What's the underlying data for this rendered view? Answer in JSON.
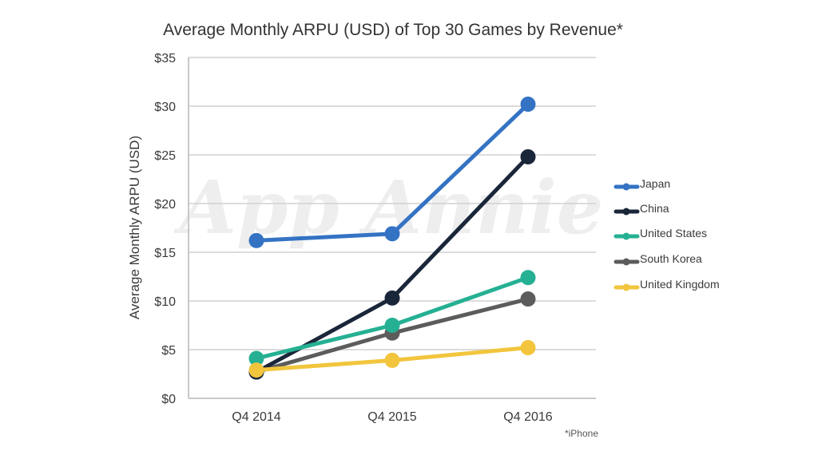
{
  "chart_data": {
    "type": "line",
    "title": "Average Monthly ARPU (USD) of Top 30 Games by Revenue*",
    "xlabel": "",
    "ylabel": "Average Monthly ARPU (USD)",
    "categories": [
      "Q4 2014",
      "Q4 2015",
      "Q4 2016"
    ],
    "ylim": [
      0,
      35
    ],
    "yticks": [
      0,
      5,
      10,
      15,
      20,
      25,
      30,
      35
    ],
    "ytick_labels": [
      "$0",
      "$5",
      "$10",
      "$15",
      "$20",
      "$25",
      "$30",
      "$35"
    ],
    "grid": true,
    "legend_position": "right",
    "series": [
      {
        "name": "Japan",
        "color": "#3473c4",
        "values": [
          16.2,
          16.9,
          30.2
        ]
      },
      {
        "name": "China",
        "color": "#1a2639",
        "values": [
          2.7,
          10.3,
          24.8
        ]
      },
      {
        "name": "United States",
        "color": "#25b093",
        "values": [
          4.1,
          7.5,
          12.4
        ]
      },
      {
        "name": "South Korea",
        "color": "#5c5c5c",
        "values": [
          2.7,
          6.7,
          10.2
        ]
      },
      {
        "name": "United Kingdom",
        "color": "#f2c53d",
        "values": [
          2.9,
          3.9,
          5.2
        ]
      }
    ],
    "footnote": "*iPhone",
    "watermark": "App Annie"
  }
}
